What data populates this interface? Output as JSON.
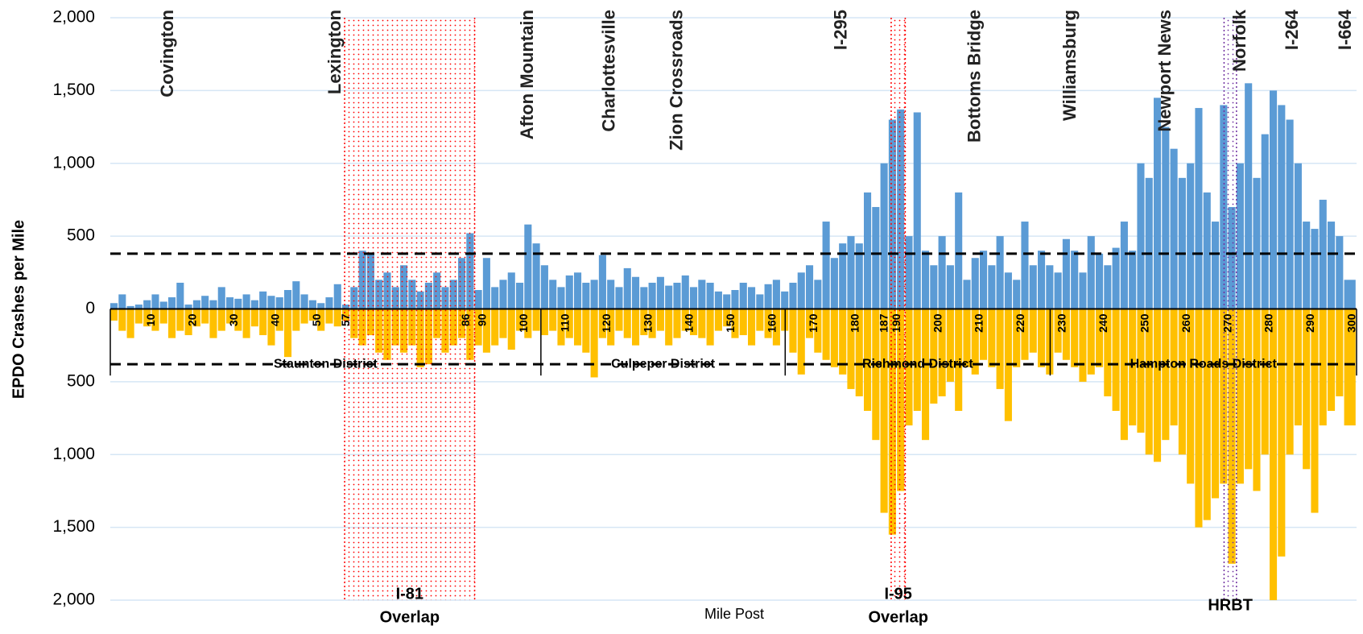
{
  "chart_data": {
    "type": "bar",
    "y_label": "EPDO Crashes per Mile",
    "x_label": "Mile Post",
    "x": [
      0,
      2,
      4,
      6,
      8,
      10,
      12,
      14,
      16,
      18,
      20,
      22,
      24,
      26,
      28,
      30,
      32,
      34,
      36,
      38,
      40,
      42,
      44,
      46,
      48,
      50,
      52,
      54,
      56,
      58,
      60,
      62,
      64,
      66,
      68,
      70,
      72,
      74,
      76,
      78,
      80,
      82,
      84,
      86,
      88,
      90,
      92,
      94,
      96,
      98,
      100,
      102,
      104,
      106,
      108,
      110,
      112,
      114,
      116,
      118,
      120,
      122,
      124,
      126,
      128,
      130,
      132,
      134,
      136,
      138,
      140,
      142,
      144,
      146,
      148,
      150,
      152,
      154,
      156,
      158,
      160,
      162,
      164,
      166,
      168,
      170,
      172,
      174,
      176,
      178,
      180,
      182,
      184,
      186,
      188,
      190,
      192,
      194,
      196,
      198,
      200,
      202,
      204,
      206,
      208,
      210,
      212,
      214,
      216,
      218,
      220,
      222,
      224,
      226,
      228,
      230,
      232,
      234,
      236,
      238,
      240,
      242,
      244,
      246,
      248,
      250,
      252,
      254,
      256,
      258,
      260,
      262,
      264,
      266,
      268,
      270,
      272,
      274,
      276,
      278,
      280,
      282,
      284,
      286,
      288,
      290,
      292,
      294,
      296,
      298
    ],
    "series": [
      {
        "color": "#5b9bd5",
        "values": [
          40,
          100,
          20,
          30,
          60,
          100,
          50,
          80,
          180,
          30,
          60,
          90,
          60,
          150,
          80,
          70,
          100,
          60,
          120,
          90,
          80,
          130,
          190,
          100,
          60,
          40,
          80,
          170,
          30,
          150,
          400,
          380,
          200,
          250,
          150,
          300,
          200,
          120,
          180,
          250,
          150,
          200,
          350,
          520,
          130,
          350,
          150,
          200,
          250,
          180,
          580,
          450,
          300,
          200,
          150,
          230,
          250,
          180,
          200,
          370,
          200,
          150,
          280,
          220,
          150,
          180,
          220,
          160,
          180,
          230,
          150,
          200,
          180,
          120,
          100,
          130,
          180,
          150,
          100,
          170,
          200,
          120,
          180,
          250,
          300,
          200,
          600,
          350,
          450,
          500,
          450,
          800,
          700,
          1000,
          1300,
          1370,
          500,
          1350,
          400,
          300,
          500,
          300,
          800,
          200,
          350,
          400,
          300,
          500,
          250,
          200,
          600,
          300,
          400,
          300,
          250,
          480,
          400,
          250,
          500,
          380,
          300,
          420,
          600,
          400,
          1000,
          900,
          1450,
          1250,
          1100,
          900,
          1000,
          1380,
          800,
          600,
          1400,
          700,
          1000,
          1550,
          900,
          1200,
          1500,
          1400,
          1300,
          1000,
          600,
          550,
          750,
          600,
          500,
          200
        ]
      },
      {
        "color": "#ffc000",
        "values": [
          -80,
          -150,
          -200,
          -100,
          -120,
          -150,
          -100,
          -200,
          -150,
          -180,
          -120,
          -100,
          -200,
          -150,
          -100,
          -150,
          -200,
          -120,
          -180,
          -250,
          -150,
          -330,
          -150,
          -100,
          -80,
          -150,
          -100,
          -120,
          -80,
          -200,
          -250,
          -180,
          -300,
          -350,
          -250,
          -300,
          -250,
          -400,
          -380,
          -200,
          -300,
          -250,
          -200,
          -350,
          -250,
          -300,
          -250,
          -200,
          -280,
          -150,
          -200,
          -150,
          -180,
          -150,
          -250,
          -200,
          -250,
          -300,
          -470,
          -200,
          -250,
          -150,
          -200,
          -250,
          -180,
          -200,
          -150,
          -250,
          -200,
          -150,
          -180,
          -200,
          -250,
          -150,
          -120,
          -200,
          -180,
          -250,
          -150,
          -200,
          -250,
          -150,
          -300,
          -450,
          -200,
          -300,
          -350,
          -400,
          -450,
          -550,
          -600,
          -700,
          -900,
          -1400,
          -1550,
          -1250,
          -800,
          -700,
          -900,
          -650,
          -600,
          -500,
          -700,
          -400,
          -450,
          -350,
          -400,
          -550,
          -770,
          -400,
          -350,
          -300,
          -400,
          -450,
          -300,
          -350,
          -400,
          -500,
          -450,
          -400,
          -600,
          -700,
          -900,
          -800,
          -850,
          -1000,
          -1050,
          -900,
          -800,
          -1000,
          -1200,
          -1500,
          -1450,
          -1300,
          -1200,
          -1750,
          -1200,
          -1100,
          -1250,
          -1000,
          -2000,
          -1700,
          -1000,
          -800,
          -1100,
          -1400,
          -800,
          -700,
          -600,
          -800
        ]
      }
    ],
    "xlim": [
      0,
      301
    ],
    "ylim": [
      -2000,
      2000
    ],
    "xticks": [
      10,
      20,
      30,
      40,
      50,
      57,
      86,
      90,
      100,
      110,
      120,
      130,
      140,
      150,
      160,
      170,
      180,
      187,
      190,
      200,
      210,
      220,
      230,
      240,
      250,
      260,
      270,
      280,
      290,
      300
    ],
    "yticks": [
      {
        "value": 2000,
        "label": "2,000"
      },
      {
        "value": 1500,
        "label": "1,500"
      },
      {
        "value": 1000,
        "label": "1,000"
      },
      500,
      0,
      {
        "value": -500,
        "label": "500"
      },
      {
        "value": -1000,
        "label": "1,000"
      },
      {
        "value": -1500,
        "label": "1,500"
      },
      {
        "value": -2000,
        "label": "2,000"
      }
    ],
    "grid": true,
    "reference_lines": [
      380,
      -380
    ],
    "districts": [
      {
        "label": "Staunton District",
        "start": 0,
        "end": 104
      },
      {
        "label": "Culpeper District",
        "start": 104,
        "end": 163
      },
      {
        "label": "Richmond District",
        "start": 163,
        "end": 227
      },
      {
        "label": "Hampton Roads District",
        "start": 227,
        "end": 301
      }
    ],
    "locations": [
      {
        "label": "Covington",
        "mile": 14
      },
      {
        "label": "Lexington",
        "mile": 54.5
      },
      {
        "label": "Afton Mountain",
        "mile": 101
      },
      {
        "label": "Charlottesville",
        "mile": 120.7
      },
      {
        "label": "Zion Crossroads",
        "mile": 137
      },
      {
        "label": "I-295",
        "mile": 176.7
      },
      {
        "label": "Bottoms Bridge",
        "mile": 209
      },
      {
        "label": "Williamsburg",
        "mile": 232
      },
      {
        "label": "Newport News",
        "mile": 255
      },
      {
        "label": "Norfolk",
        "mile": 273
      },
      {
        "label": "I-264",
        "mile": 285.7
      },
      {
        "label": "I-664",
        "mile": 298.5
      }
    ],
    "overlays": [
      {
        "label_lines": [
          "I-81",
          "Overlap"
        ],
        "start": 56.6,
        "end": 88,
        "color": "#ff0000"
      },
      {
        "label_lines": [
          "I-95",
          "Overlap"
        ],
        "start": 188.6,
        "end": 192,
        "color": "#ff0000"
      },
      {
        "label_lines": [
          "HRBT"
        ],
        "start": 269,
        "end": 272,
        "color": "#7030a0"
      }
    ]
  }
}
